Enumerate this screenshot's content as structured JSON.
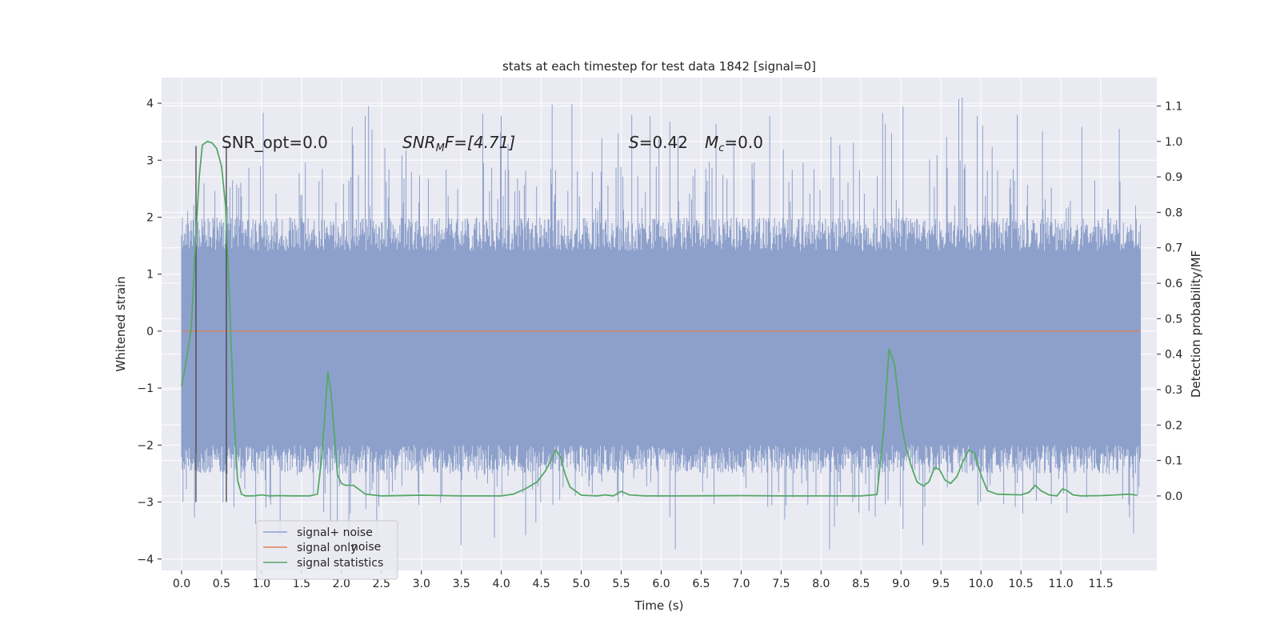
{
  "chart_data": {
    "type": "line",
    "title": "stats at each timestep for test data 1842 [signal=0]",
    "xlabel": "Time (s)",
    "ylabel": "Whitened strain",
    "y2label": "Detection probability/MF",
    "xlim": [
      -0.25,
      12.2
    ],
    "ylim": [
      -4.2,
      4.45
    ],
    "y2lim": [
      -0.21,
      1.18
    ],
    "x_ticks": [
      "0.0",
      "0.5",
      "1.0",
      "1.5",
      "2.0",
      "2.5",
      "3.0",
      "3.5",
      "4.0",
      "4.5",
      "5.0",
      "5.5",
      "6.0",
      "6.5",
      "7.0",
      "7.5",
      "8.0",
      "8.5",
      "9.0",
      "9.5",
      "10.0",
      "10.5",
      "11.0",
      "11.5"
    ],
    "y_ticks": [
      "4",
      "3",
      "2",
      "1",
      "0",
      "−1",
      "−2",
      "−3",
      "−4"
    ],
    "y2_ticks": [
      "1.1",
      "1.0",
      "0.9",
      "0.8",
      "0.7",
      "0.6",
      "0.5",
      "0.4",
      "0.3",
      "0.2",
      "0.1",
      "0.0"
    ],
    "grid": true,
    "legend_position": "lower-left",
    "legend": [
      "signal+ noise",
      "signal only",
      "signal statistics"
    ],
    "legend_hidden_text": "noise",
    "annotations": {
      "snr_opt": "SNR_opt=0.0",
      "snr_mf_base": "SNR",
      "snr_mf_sub": "M",
      "snr_mf_rest": "F=[4.71]",
      "s_base": "S",
      "s_rest": "=0.42",
      "mc_base": "M",
      "mc_sub": "c",
      "mc_rest": "=0.0"
    },
    "vertical_markers_x": [
      0.18,
      0.56
    ],
    "vertical_markers_range": [
      -3.0,
      3.25
    ],
    "noise": {
      "x_start": 0.0,
      "x_end": 12.0,
      "core_band": [
        -1.75,
        1.35
      ],
      "typical_band": [
        -2.5,
        2.0
      ],
      "peak_max": [
        4.1,
        -3.85
      ]
    },
    "series": [
      {
        "name": "signal+ noise",
        "color": "#8da0cb"
      },
      {
        "name": "signal only",
        "color": "#dd8452",
        "x": [
          0.0,
          12.0
        ],
        "values": [
          0.0,
          0.0
        ]
      },
      {
        "name": "signal statistics",
        "color": "#55a868",
        "axis": "right",
        "x": [
          0.0,
          0.05,
          0.12,
          0.18,
          0.22,
          0.26,
          0.32,
          0.38,
          0.44,
          0.5,
          0.55,
          0.6,
          0.65,
          0.7,
          0.75,
          0.8,
          0.9,
          1.0,
          1.1,
          1.2,
          1.4,
          1.6,
          1.7,
          1.75,
          1.8,
          1.83,
          1.87,
          1.92,
          1.95,
          2.0,
          2.05,
          2.15,
          2.3,
          2.5,
          3.0,
          3.5,
          4.0,
          4.15,
          4.3,
          4.45,
          4.55,
          4.62,
          4.68,
          4.74,
          4.8,
          4.86,
          5.0,
          5.2,
          5.3,
          5.4,
          5.5,
          5.6,
          5.8,
          6.2,
          7.0,
          7.5,
          8.0,
          8.5,
          8.7,
          8.78,
          8.85,
          8.92,
          9.0,
          9.05,
          9.12,
          9.2,
          9.28,
          9.35,
          9.42,
          9.48,
          9.55,
          9.62,
          9.7,
          9.78,
          9.85,
          9.92,
          10.0,
          10.08,
          10.2,
          10.35,
          10.5,
          10.6,
          10.68,
          10.75,
          10.85,
          10.95,
          11.02,
          11.08,
          11.15,
          11.25,
          11.5,
          11.7,
          11.85,
          11.95
        ],
        "values": [
          0.31,
          0.37,
          0.47,
          0.74,
          0.9,
          0.99,
          1.0,
          0.996,
          0.98,
          0.93,
          0.82,
          0.55,
          0.25,
          0.045,
          0.005,
          0.0,
          0.0,
          0.003,
          0.0,
          0.001,
          0.0,
          0.0,
          0.005,
          0.1,
          0.25,
          0.35,
          0.29,
          0.15,
          0.06,
          0.035,
          0.03,
          0.03,
          0.005,
          0.0,
          0.002,
          0.0,
          0.0,
          0.005,
          0.02,
          0.04,
          0.07,
          0.1,
          0.13,
          0.11,
          0.06,
          0.025,
          0.002,
          0.0,
          0.003,
          0.0,
          0.013,
          0.003,
          0.0,
          0.0,
          0.001,
          0.0,
          0.0,
          0.0,
          0.004,
          0.18,
          0.415,
          0.37,
          0.21,
          0.15,
          0.09,
          0.04,
          0.028,
          0.04,
          0.08,
          0.075,
          0.045,
          0.035,
          0.055,
          0.1,
          0.13,
          0.12,
          0.06,
          0.015,
          0.005,
          0.004,
          0.003,
          0.01,
          0.03,
          0.015,
          0.003,
          0.0,
          0.02,
          0.015,
          0.003,
          0.0,
          0.001,
          0.003,
          0.005,
          0.002
        ]
      }
    ]
  }
}
